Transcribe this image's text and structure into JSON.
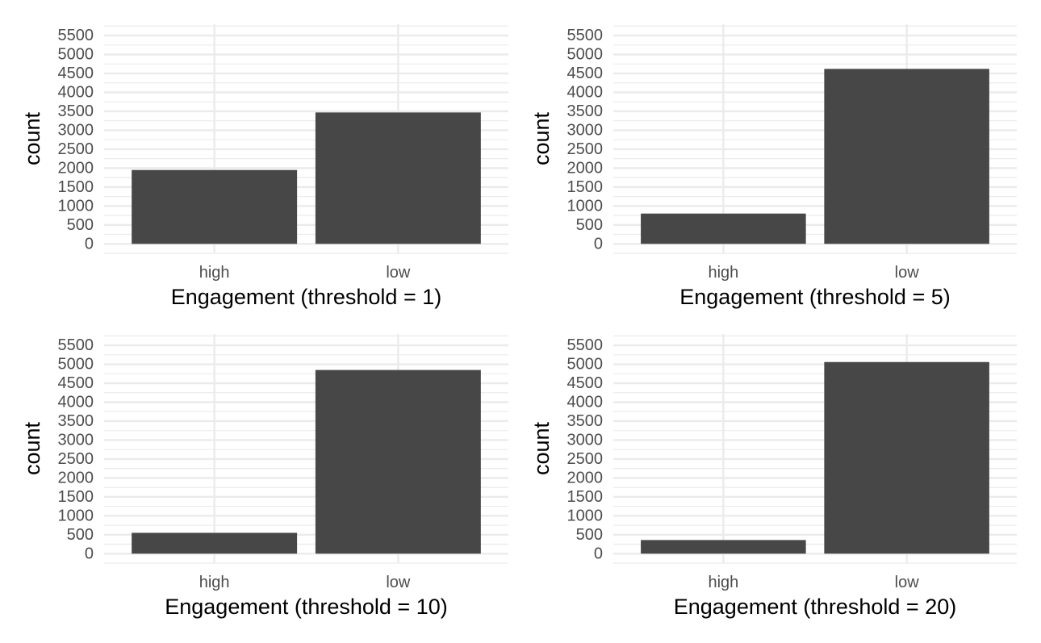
{
  "chart_data": [
    {
      "type": "bar",
      "categories": [
        "high",
        "low"
      ],
      "values": [
        1950,
        3470
      ],
      "xlabel": "Engagement (threshold = 1)",
      "ylabel": "count",
      "yticks": [
        0,
        500,
        1000,
        1500,
        2000,
        2500,
        3000,
        3500,
        4000,
        4500,
        5000,
        5500
      ],
      "ylim": [
        -250,
        5800
      ],
      "grid": true,
      "bar_color": "#474747"
    },
    {
      "type": "bar",
      "categories": [
        "high",
        "low"
      ],
      "values": [
        800,
        4620
      ],
      "xlabel": "Engagement (threshold = 5)",
      "ylabel": "count",
      "yticks": [
        0,
        500,
        1000,
        1500,
        2000,
        2500,
        3000,
        3500,
        4000,
        4500,
        5000,
        5500
      ],
      "ylim": [
        -250,
        5800
      ],
      "grid": true,
      "bar_color": "#474747"
    },
    {
      "type": "bar",
      "categories": [
        "high",
        "low"
      ],
      "values": [
        550,
        4850
      ],
      "xlabel": "Engagement (threshold = 10)",
      "ylabel": "count",
      "yticks": [
        0,
        500,
        1000,
        1500,
        2000,
        2500,
        3000,
        3500,
        4000,
        4500,
        5000,
        5500
      ],
      "ylim": [
        -250,
        5800
      ],
      "grid": true,
      "bar_color": "#474747"
    },
    {
      "type": "bar",
      "categories": [
        "high",
        "low"
      ],
      "values": [
        360,
        5060
      ],
      "xlabel": "Engagement (threshold = 20)",
      "ylabel": "count",
      "yticks": [
        0,
        500,
        1000,
        1500,
        2000,
        2500,
        3000,
        3500,
        4000,
        4500,
        5000,
        5500
      ],
      "ylim": [
        -250,
        5800
      ],
      "grid": true,
      "bar_color": "#474747"
    }
  ],
  "colors": {
    "background": "#ffffff",
    "gridline": "#ebebeb",
    "tick_text": "#4d4d4d",
    "title_text": "#000000"
  }
}
